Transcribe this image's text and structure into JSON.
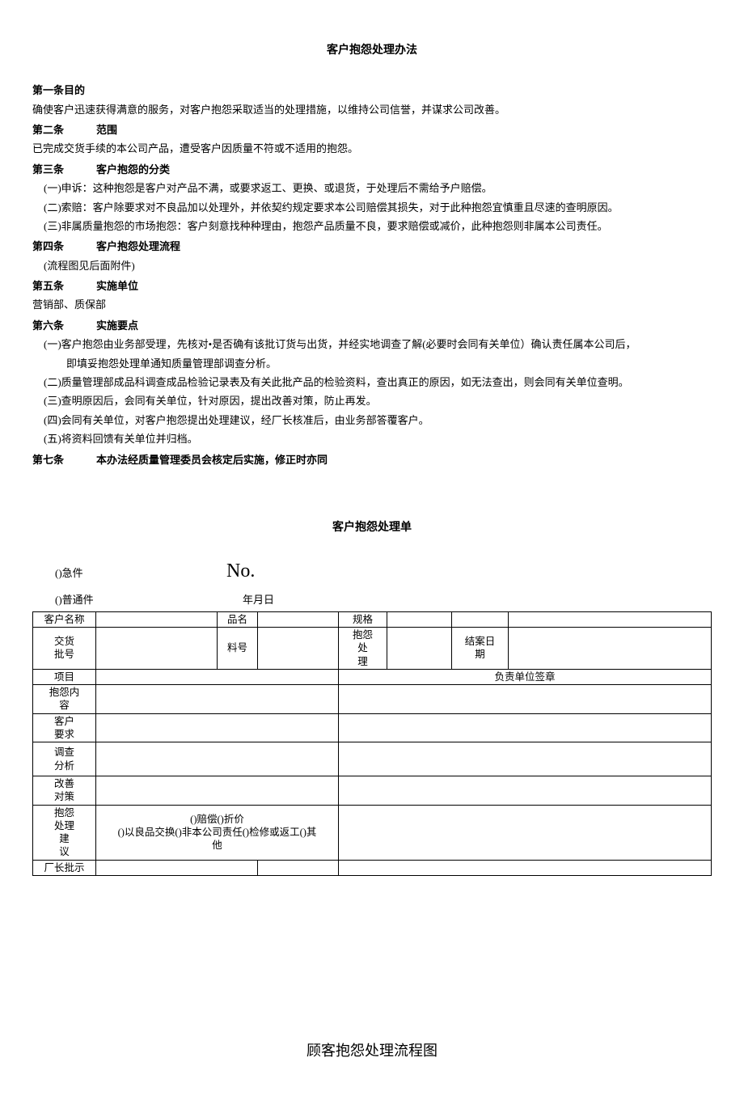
{
  "doc": {
    "title": "客户抱怨处理办法",
    "articles": [
      {
        "heading": "第一条目的",
        "heading_style": "nogap",
        "lines": [
          {
            "text": "确使客户迅速获得满意的服务，对客户抱怨采取适当的处理措施，以维持公司信誉，并谋求公司改善。",
            "indent": 0
          }
        ]
      },
      {
        "heading_a": "第二条",
        "heading_b": "范围",
        "heading_style": "gap",
        "lines": [
          {
            "text": "已完成交货手续的本公司产品，遭受客户因质量不符或不适用的抱怨。",
            "indent": 0
          }
        ]
      },
      {
        "heading_a": "第三条",
        "heading_b": "客户抱怨的分类",
        "heading_style": "gap",
        "lines": [
          {
            "text": "(一)申诉：这种抱怨是客户对产品不满，或要求返工、更换、或退货，于处理后不需给予户赔偿。",
            "indent": 1
          },
          {
            "text": "(二)索赔：客户除要求对不良品加以处理外，并依契约规定要求本公司赔偿其损失，对于此种抱怨宜慎重且尽速的查明原因。",
            "indent": 1
          },
          {
            "text": "(三)非属质量抱怨的市场抱怨：客户刻意找种种理由，抱怨产品质量不良，要求赔偿或减价，此种抱怨则非属本公司责任。",
            "indent": 1
          }
        ]
      },
      {
        "heading_a": "第四条",
        "heading_b": "客户抱怨处理流程",
        "heading_style": "gap",
        "lines": [
          {
            "text": "(流程图见后面附件)",
            "indent": 1
          }
        ]
      },
      {
        "heading_a": "第五条",
        "heading_b": "实施单位",
        "heading_style": "gap",
        "lines": [
          {
            "text": "营销部、质保部",
            "indent": 0
          }
        ]
      },
      {
        "heading_a": "第六条",
        "heading_b": "实施要点",
        "heading_style": "gap",
        "lines": [
          {
            "text": "(一)客户抱怨由业务部受理，先核对•是否确有该批订货与出货，并经实地调查了解(必要时会同有关单位）确认责任属本公司后，",
            "indent": 1
          },
          {
            "text": "即填妥抱怨处理单通知质量管理部调查分析。",
            "indent": 2
          },
          {
            "text": "(二)质量管理部成品科调查成品检验记录表及有关此批产品的检验资料，查出真正的原因，如无法查出，则会同有关单位查明。",
            "indent": 1
          },
          {
            "text": "(三)查明原因后，会同有关单位，针对原因，提出改善对策，防止再发。",
            "indent": 1
          },
          {
            "text": "(四)会同有关单位，对客户抱怨提出处理建议，经厂长核准后，由业务部答覆客户。",
            "indent": 1
          },
          {
            "text": "(五)将资料回馈有关单位并归档。",
            "indent": 1
          }
        ]
      },
      {
        "heading_a": "第七条",
        "heading_b": "本办法经质量管理委员会核定后实施，修正时亦同",
        "heading_style": "gap",
        "lines": []
      }
    ]
  },
  "form": {
    "title": "客户抱怨处理单",
    "urgent_label": "()急件",
    "no_label": "No.",
    "normal_label": "()普通件",
    "date_label": "年月日",
    "row1": {
      "c1": "客户名称",
      "c2": "",
      "c3": "品名",
      "c4": "",
      "c5": "规格",
      "c6": "",
      "c7": "",
      "c8": ""
    },
    "row2": {
      "c1": "交货\n批号",
      "c2": "",
      "c3": "料号",
      "c4": "",
      "c5": "抱怨\n处\n理",
      "c6": "",
      "c7": "结案日\n期",
      "c8": ""
    },
    "row3": {
      "c1": "项目",
      "c2_4": "",
      "c5_8": "负责单位签章"
    },
    "row4": {
      "label": "抱怨内\n容"
    },
    "row5": {
      "label": "客户\n要求"
    },
    "row6": {
      "label": "调查\n分析"
    },
    "row7": {
      "label": "改善\n对策"
    },
    "row8": {
      "label": "抱怨\n处理\n建\n议",
      "content": "()赔偿()折价\n()以良品交换()非本公司责任()检修或返工()其\n他"
    },
    "row9": {
      "label": "厂长批示"
    }
  },
  "flowchart": {
    "title": "顾客抱怨处理流程图"
  },
  "colors": {
    "text": "#000000",
    "background": "#ffffff",
    "border": "#000000"
  }
}
